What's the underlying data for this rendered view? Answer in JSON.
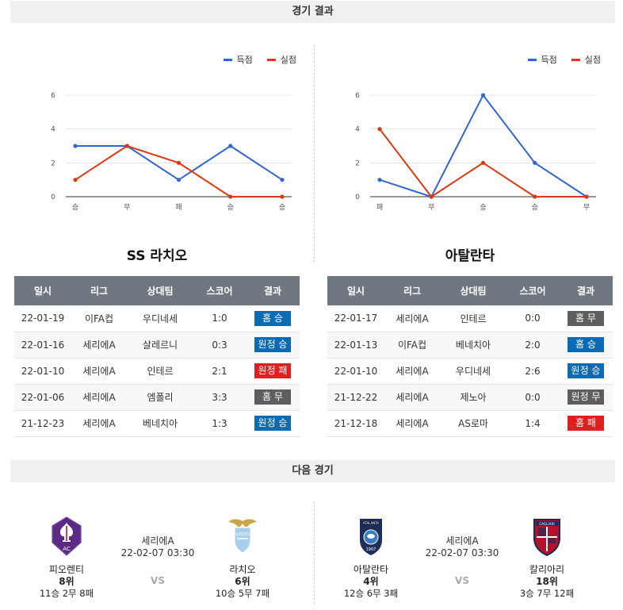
{
  "sections": {
    "results_title": "경기 결과",
    "next_title": "다음 경기"
  },
  "legend": {
    "scored": "득점",
    "conceded": "실점"
  },
  "colors": {
    "scored": "#3366cc",
    "conceded": "#dc3912",
    "home": "#0a6ab3",
    "away": "#0a6ab3",
    "draw": "#5e5e5e",
    "loss": "#e02020"
  },
  "chart_data": [
    {
      "type": "line",
      "categories": [
        "승",
        "무",
        "패",
        "승",
        "승"
      ],
      "ylim": [
        0,
        6
      ],
      "yticks": [
        0,
        2,
        4,
        6
      ],
      "series": [
        {
          "name": "득점",
          "values": [
            3,
            3,
            1,
            3,
            1
          ]
        },
        {
          "name": "실점",
          "values": [
            1,
            3,
            2,
            0,
            0
          ]
        }
      ]
    },
    {
      "type": "line",
      "categories": [
        "패",
        "무",
        "승",
        "승",
        "무"
      ],
      "ylim": [
        0,
        6
      ],
      "yticks": [
        0,
        2,
        4,
        6
      ],
      "series": [
        {
          "name": "득점",
          "values": [
            1,
            0,
            6,
            2,
            0
          ]
        },
        {
          "name": "실점",
          "values": [
            4,
            0,
            2,
            0,
            0
          ]
        }
      ]
    }
  ],
  "teams": {
    "left": {
      "title": "SS 라치오",
      "headers": [
        "일시",
        "리그",
        "상대팀",
        "스코어",
        "결과"
      ],
      "rows": [
        {
          "date": "22-01-19",
          "league": "이FA컵",
          "opponent": "우디네세",
          "score": "1:0",
          "result": "홈 승",
          "kind": "home"
        },
        {
          "date": "22-01-16",
          "league": "세리에A",
          "opponent": "살레르니",
          "score": "0:3",
          "result": "원정 승",
          "kind": "away"
        },
        {
          "date": "22-01-10",
          "league": "세리에A",
          "opponent": "인테르",
          "score": "2:1",
          "result": "원정 패",
          "kind": "loss"
        },
        {
          "date": "22-01-06",
          "league": "세리에A",
          "opponent": "엠폴리",
          "score": "3:3",
          "result": "홈 무",
          "kind": "draw"
        },
        {
          "date": "21-12-23",
          "league": "세리에A",
          "opponent": "베네치아",
          "score": "1:3",
          "result": "원정 승",
          "kind": "away"
        }
      ]
    },
    "right": {
      "title": "아탈란타",
      "headers": [
        "일시",
        "리그",
        "상대팀",
        "스코어",
        "결과"
      ],
      "rows": [
        {
          "date": "22-01-17",
          "league": "세리에A",
          "opponent": "인테르",
          "score": "0:0",
          "result": "홈 무",
          "kind": "draw"
        },
        {
          "date": "22-01-13",
          "league": "이FA컵",
          "opponent": "베네치아",
          "score": "2:0",
          "result": "홈 승",
          "kind": "home"
        },
        {
          "date": "22-01-10",
          "league": "세리에A",
          "opponent": "우디네세",
          "score": "2:6",
          "result": "원정 승",
          "kind": "away"
        },
        {
          "date": "21-12-22",
          "league": "세리에A",
          "opponent": "제노아",
          "score": "0:0",
          "result": "원정 무",
          "kind": "draw"
        },
        {
          "date": "21-12-18",
          "league": "세리에A",
          "opponent": "AS로마",
          "score": "1:4",
          "result": "홈 패",
          "kind": "loss"
        }
      ]
    }
  },
  "next_matches": [
    {
      "league": "세리에A",
      "datetime": "22-02-07 03:30",
      "vs": "VS",
      "home": {
        "name": "피오렌티",
        "rank": "8위",
        "record": "11승 2무 8패",
        "logo": "fiorentina-logo"
      },
      "away": {
        "name": "라치오",
        "rank": "6위",
        "record": "10승 5무 7패",
        "logo": "lazio-logo"
      }
    },
    {
      "league": "세리에A",
      "datetime": "22-02-07 03:30",
      "vs": "VS",
      "home": {
        "name": "아탈란타",
        "rank": "4위",
        "record": "12승 6무 3패",
        "logo": "atalanta-logo"
      },
      "away": {
        "name": "칼리아리",
        "rank": "18위",
        "record": "3승 7무 12패",
        "logo": "cagliari-logo"
      }
    }
  ]
}
